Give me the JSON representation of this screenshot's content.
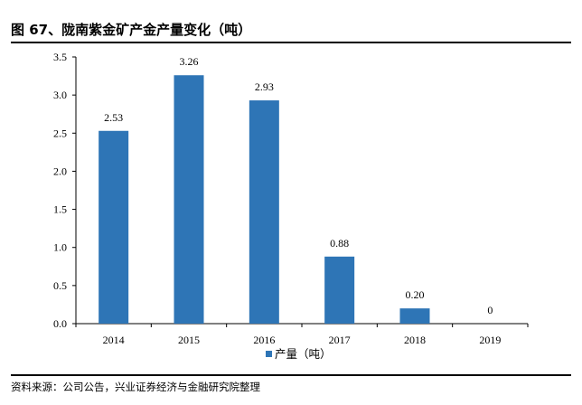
{
  "header": {
    "title": "图 67、陇南紫金矿产金产量变化（吨）"
  },
  "footer": {
    "source": "资料来源：公司公告，兴业证券经济与金融研究院整理"
  },
  "chart_data": {
    "type": "bar",
    "categories": [
      "2014",
      "2015",
      "2016",
      "2017",
      "2018",
      "2019"
    ],
    "series": [
      {
        "name": "产量（吨）",
        "values": [
          2.53,
          3.26,
          2.93,
          0.88,
          0.2,
          0
        ],
        "labels": [
          "2.53",
          "3.26",
          "2.93",
          "0.88",
          "0.20",
          "0"
        ],
        "color": "#2E75B6"
      }
    ],
    "yticks": [
      "0.0",
      "0.5",
      "1.0",
      "1.5",
      "2.0",
      "2.5",
      "3.0",
      "3.5"
    ],
    "ylim": [
      0,
      3.5
    ],
    "grid": false,
    "legend_position": "bottom"
  }
}
